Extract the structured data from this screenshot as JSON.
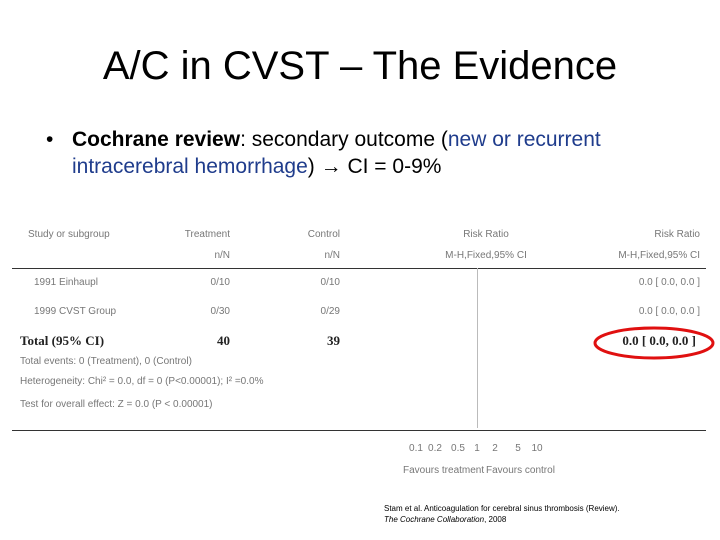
{
  "slide": {
    "title": "A/C in CVST – The Evidence",
    "bullet": {
      "marker": "•",
      "lead": "Cochrane review",
      "colon": ": secondary outcome (",
      "highlight": "new or recurrent intracerebral hemorrhage",
      "close": ")",
      "arrow": "→",
      "result": " CI = 0-9%"
    }
  },
  "forest_plot": {
    "headers": {
      "study": "Study or subgroup",
      "treatment": "Treatment",
      "treatment_sub": "n/N",
      "control": "Control",
      "control_sub": "n/N",
      "risk_ratio": "Risk Ratio",
      "risk_ratio_sub": "M-H,Fixed,95% CI",
      "risk_ratio_right": "Risk Ratio",
      "risk_ratio_right_sub": "M-H,Fixed,95% CI"
    },
    "rows": [
      {
        "study": "1991 Einhaupl",
        "treatment": "0/10",
        "control": "0/10",
        "rr": "0.0 [ 0.0, 0.0 ]"
      },
      {
        "study": "1999 CVST Group",
        "treatment": "0/30",
        "control": "0/29",
        "rr": "0.0 [ 0.0, 0.0 ]"
      }
    ],
    "total": {
      "label": "Total (95% CI)",
      "treatment": "40",
      "control": "39",
      "rr": "0.0 [ 0.0, 0.0 ]"
    },
    "notes": [
      "Total events: 0 (Treatment), 0 (Control)",
      "Heterogeneity: Chi² = 0.0, df = 0 (P<0.00001); I² =0.0%",
      "Test for overall effect: Z = 0.0 (P < 0.00001)"
    ],
    "axis_ticks": [
      "0.1",
      "0.2",
      "0.5",
      "1",
      "2",
      "5",
      "10"
    ],
    "favours_left": "Favours treatment",
    "favours_right": "Favours control",
    "highlight_color": "#e01010"
  },
  "citation": {
    "line1": "Stam et al. Anticoagulation for cerebral sinus thrombosis (Review).",
    "line2_italic": "The Cochrane Collaboration",
    "line2_rest": ", 2008"
  }
}
